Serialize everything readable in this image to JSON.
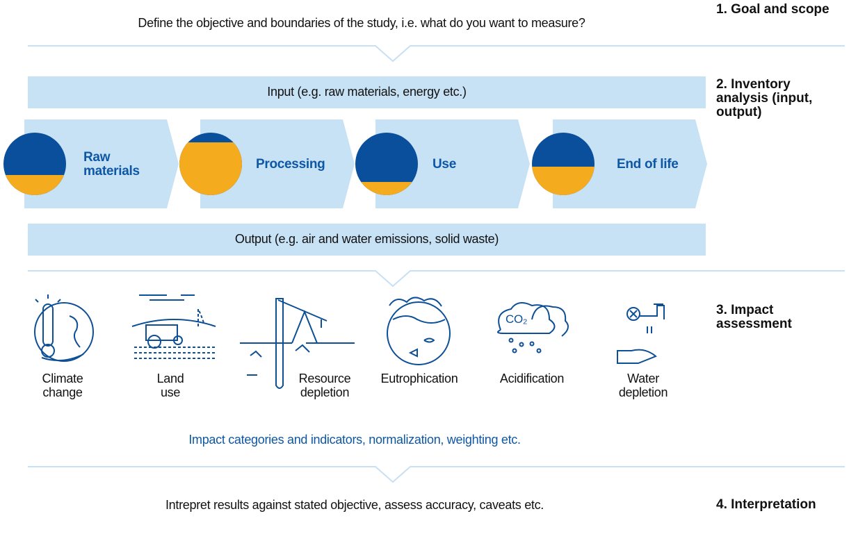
{
  "goal": {
    "title": "1. Goal and scope",
    "text": "Define the objective and boundaries of the study, i.e. what do you want to measure?"
  },
  "inventory": {
    "title": "2. Inventory analysis (input, output)",
    "input": "Input (e.g. raw materials, energy etc.)",
    "output": "Output (e.g. air and water emissions, solid waste)",
    "phases": [
      "Raw materials",
      "Processing",
      "Use",
      "End of life"
    ]
  },
  "impact": {
    "title": "3. Impact assessment",
    "categories": [
      "Climate change",
      "Land use",
      "Resource depletion",
      "Eutrophication",
      "Acidification",
      "Water depletion"
    ],
    "icon_text": "CO₂",
    "note": "Impact categories and indicators, normalization, weighting etc."
  },
  "interpretation": {
    "title": "4. Interpretation",
    "text": "Intrepret results against stated objective, assess accuracy, caveats etc."
  }
}
